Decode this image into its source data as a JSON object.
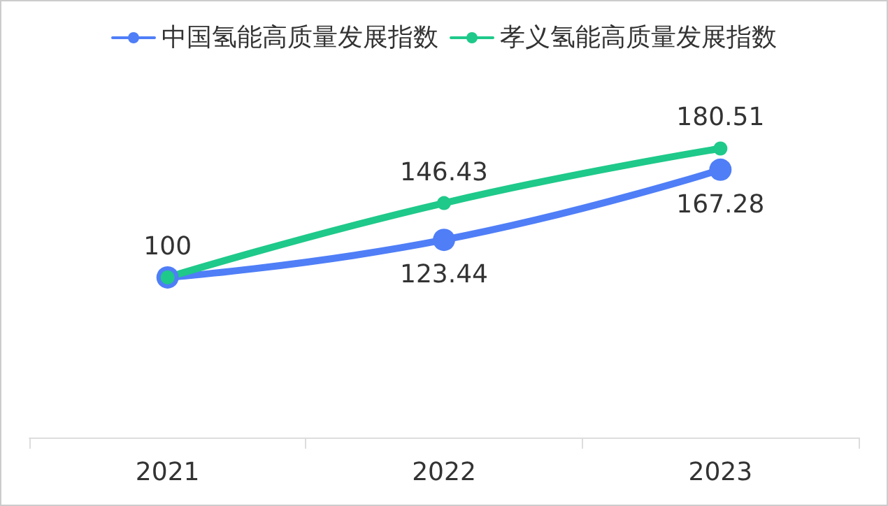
{
  "chart_data": {
    "type": "line",
    "categories": [
      "2021",
      "2022",
      "2023"
    ],
    "series": [
      {
        "name": "中国氢能高质量发展指数",
        "color": "#4f7ef7",
        "values": [
          100,
          123.44,
          167.28
        ],
        "value_labels": [
          null,
          "123.44",
          "167.28"
        ]
      },
      {
        "name": "孝义氢能高质量发展指数",
        "color": "#1ec98a",
        "values": [
          100,
          146.43,
          180.51
        ],
        "value_labels": [
          "100",
          "146.43",
          "180.51"
        ]
      }
    ],
    "legend": "top",
    "marker": "circle",
    "line_style": "solid",
    "grid": false
  }
}
